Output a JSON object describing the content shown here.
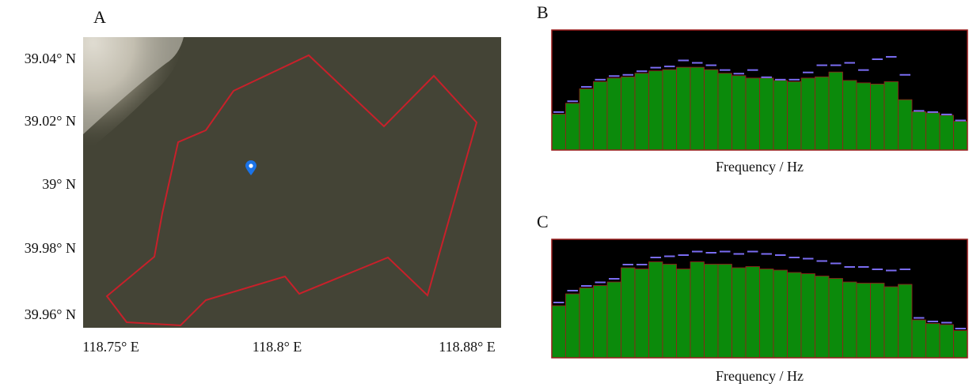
{
  "map": {
    "label": "A",
    "lat_labels": [
      "39.04° N",
      "39.02° N",
      "39° N",
      "39.98° N",
      "39.96° N"
    ],
    "lon_labels": [
      "118.75° E",
      "118.8° E",
      "118.88° E"
    ]
  },
  "chart_data": [
    {
      "type": "bar",
      "label": "B",
      "x_label": "Frequency / Hz",
      "ylim": [
        0,
        100
      ],
      "color": "#0b8a0b",
      "peak_color": "#7a6cf2",
      "background": "#000000",
      "grid_color": "#9a1c1c",
      "values": [
        30,
        39,
        51,
        57,
        60,
        61,
        64,
        66,
        67,
        69,
        69,
        67,
        64,
        62,
        60,
        60,
        58,
        57,
        60,
        61,
        65,
        58,
        56,
        55,
        57,
        42,
        32,
        31,
        29,
        24
      ],
      "peaks": [
        31,
        40,
        52,
        58,
        61,
        62,
        65,
        68,
        69,
        74,
        72,
        70,
        66,
        63,
        66,
        60,
        58,
        58,
        64,
        70,
        70,
        72,
        66,
        75,
        77,
        62,
        32,
        31,
        29,
        24
      ]
    },
    {
      "type": "bar",
      "label": "C",
      "x_label": "Frequency / Hz",
      "ylim": [
        0,
        100
      ],
      "color": "#0b8a0b",
      "peak_color": "#7a6cf2",
      "background": "#000000",
      "grid_color": "#9a1c1c",
      "values": [
        44,
        54,
        59,
        61,
        64,
        76,
        75,
        81,
        79,
        75,
        81,
        79,
        79,
        76,
        77,
        75,
        74,
        72,
        71,
        69,
        67,
        64,
        63,
        63,
        60,
        62,
        32,
        29,
        28,
        23
      ],
      "peaks": [
        46,
        56,
        60,
        63,
        66,
        78,
        78,
        84,
        85,
        86,
        89,
        88,
        89,
        87,
        89,
        87,
        86,
        84,
        83,
        81,
        79,
        76,
        76,
        74,
        73,
        74,
        33,
        30,
        29,
        24
      ]
    }
  ]
}
